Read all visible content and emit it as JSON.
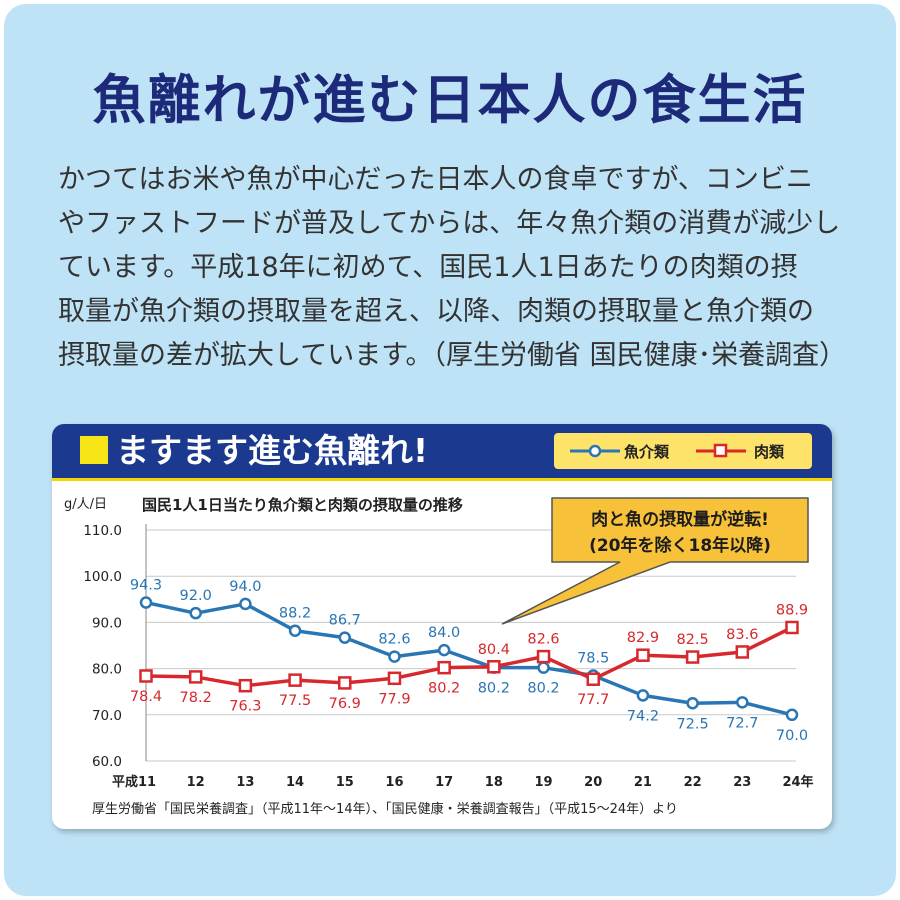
{
  "page": {
    "title": "魚離れが進む日本人の食生活",
    "body_lines": [
      "かつてはお米や魚が中心だった日本人の食卓ですが、コンビニ",
      "やファストフードが普及してからは、年々魚介類の消費が減少し",
      "ています。平成18年に初めて、国民1人1日あたりの肉類の摂",
      "取量が魚介類の摂取量を超え、以降、肉類の摂取量と魚介類の",
      "摂取量の差が拡大しています。（厚生労働省 国民健康･栄養調査）"
    ]
  },
  "card": {
    "title": "ますます進む魚離れ!",
    "source": "厚生労働省「国民栄養調査」（平成11年〜14年）、「国民健康・栄養調査報告」（平成15〜24年）より"
  },
  "chart_data": {
    "type": "line",
    "title": "国民1人1日当たり魚介類と肉類の摂取量の推移",
    "ylabel": "g/人/日",
    "xlabel": "",
    "ylim": [
      60,
      110
    ],
    "y_ticks": [
      "60.0",
      "70.0",
      "80.0",
      "90.0",
      "100.0",
      "110.0"
    ],
    "categories": [
      "平成11",
      "12",
      "13",
      "14",
      "15",
      "16",
      "17",
      "18",
      "19",
      "20",
      "21",
      "22",
      "23",
      "24年"
    ],
    "series": [
      {
        "name": "魚介類",
        "color": "#2a76b5",
        "marker": "circle",
        "values": [
          94.3,
          92.0,
          94.0,
          88.2,
          86.7,
          82.6,
          84.0,
          80.2,
          80.2,
          78.5,
          74.2,
          72.5,
          72.7,
          70.0
        ],
        "labels": [
          "94.3",
          "92.0",
          "94.0",
          "88.2",
          "86.7",
          "82.6",
          "84.0",
          "80.2",
          "80.2",
          "78.5",
          "74.2",
          "72.5",
          "72.7",
          "70.0"
        ]
      },
      {
        "name": "肉類",
        "color": "#d7282e",
        "marker": "square",
        "values": [
          78.4,
          78.2,
          76.3,
          77.5,
          76.9,
          77.9,
          80.2,
          80.4,
          82.6,
          77.7,
          82.9,
          82.5,
          83.6,
          88.9
        ],
        "labels": [
          "78.4",
          "78.2",
          "76.3",
          "77.5",
          "76.9",
          "77.9",
          "80.2",
          "80.4",
          "82.6",
          "77.7",
          "82.9",
          "82.5",
          "83.6",
          "88.9"
        ]
      }
    ],
    "grid": true,
    "legend": "top-right",
    "callout": [
      "肉と魚の摂取量が逆転!",
      "(20年を除く18年以降)"
    ]
  }
}
